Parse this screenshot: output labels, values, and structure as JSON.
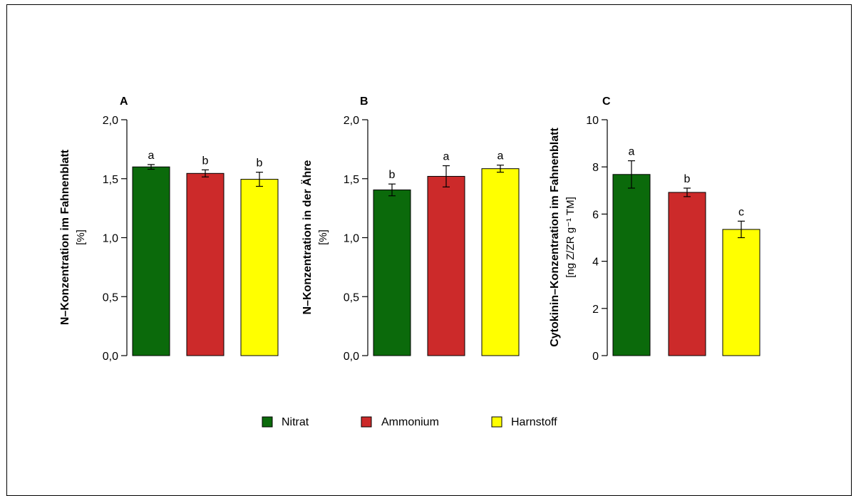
{
  "colors": {
    "Nitrat": "#0b6a0b",
    "Ammonium": "#cc2a2a",
    "Harnstoff": "#ffff00"
  },
  "legend": [
    "Nitrat",
    "Ammonium",
    "Harnstoff"
  ],
  "chart_data": [
    {
      "type": "bar",
      "panel": "A",
      "categories": [
        "Nitrat",
        "Ammonium",
        "Harnstoff"
      ],
      "values": [
        1.6,
        1.545,
        1.495
      ],
      "errors": [
        0.02,
        0.03,
        0.06
      ],
      "sig_letters": [
        "a",
        "b",
        "b"
      ],
      "ylabel": "N–Konzentration im Fahnenblatt",
      "ylabel_unit": "[%]",
      "ylim": [
        0,
        2.0
      ],
      "yticks": [
        "0,0",
        "0,5",
        "1,0",
        "1,5",
        "2,0"
      ],
      "ytick_values": [
        0,
        0.5,
        1.0,
        1.5,
        2.0
      ]
    },
    {
      "type": "bar",
      "panel": "B",
      "categories": [
        "Nitrat",
        "Ammonium",
        "Harnstoff"
      ],
      "values": [
        1.405,
        1.52,
        1.585
      ],
      "errors": [
        0.05,
        0.09,
        0.03
      ],
      "sig_letters": [
        "b",
        "a",
        "a"
      ],
      "ylabel": "N–Konzentration in der Ähre",
      "ylabel_unit": "[%]",
      "ylim": [
        0,
        2.0
      ],
      "yticks": [
        "0,0",
        "0,5",
        "1,0",
        "1,5",
        "2,0"
      ],
      "ytick_values": [
        0,
        0.5,
        1.0,
        1.5,
        2.0
      ]
    },
    {
      "type": "bar",
      "panel": "C",
      "categories": [
        "Nitrat",
        "Ammonium",
        "Harnstoff"
      ],
      "values": [
        7.68,
        6.92,
        5.35
      ],
      "errors": [
        0.58,
        0.18,
        0.35
      ],
      "sig_letters": [
        "a",
        "b",
        "c"
      ],
      "ylabel": "Cytokinin–Konzentration im Fahnenblatt",
      "ylabel_unit": "[ng Z/ZR g⁻¹ TM]",
      "ylim": [
        0,
        10
      ],
      "yticks": [
        "0",
        "2",
        "4",
        "6",
        "8",
        "10"
      ],
      "ytick_values": [
        0,
        2,
        4,
        6,
        8,
        10
      ]
    }
  ]
}
